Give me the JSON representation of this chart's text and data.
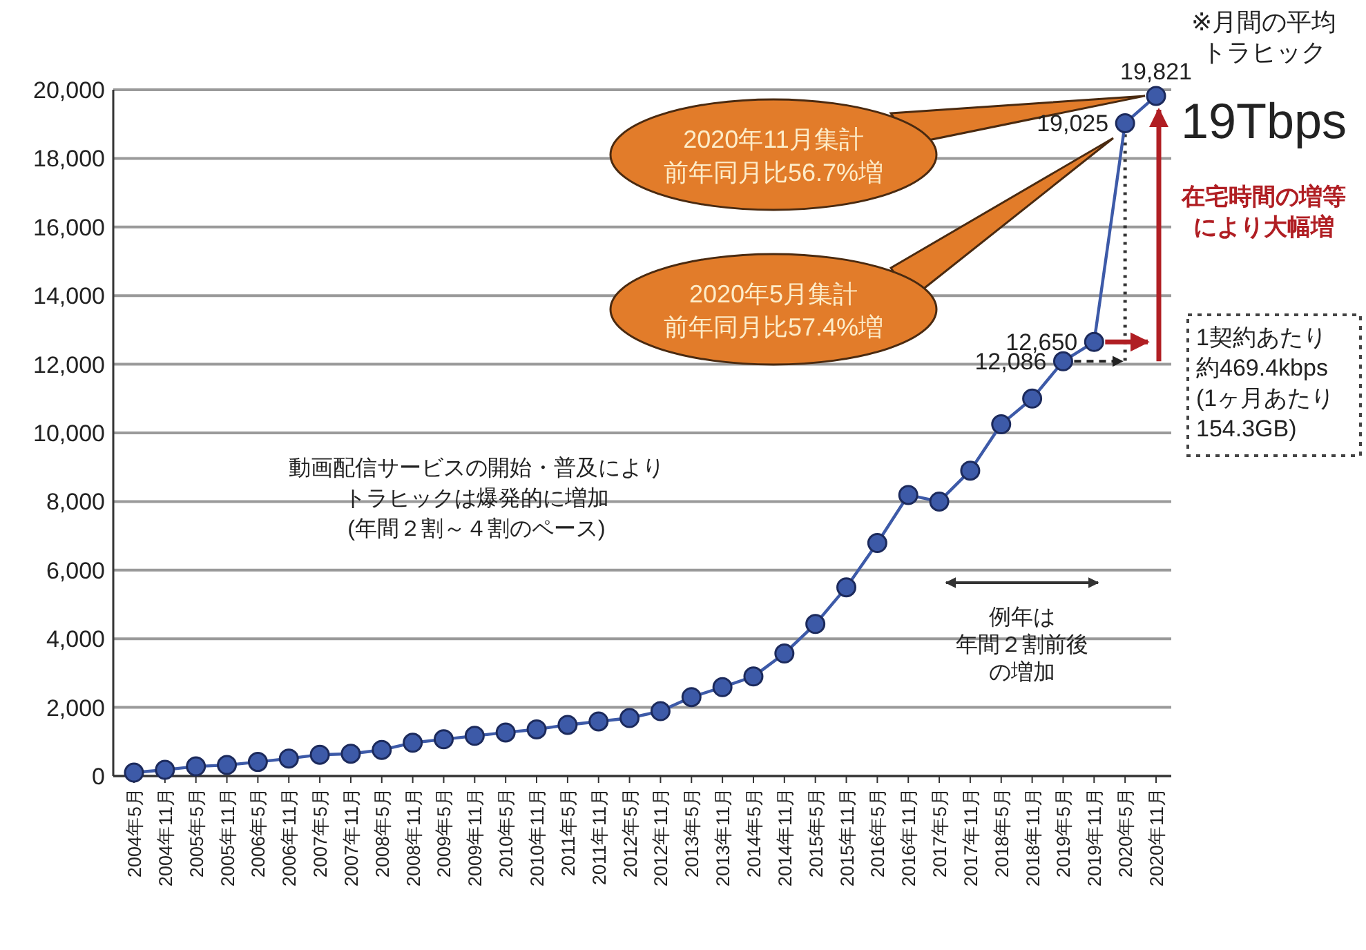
{
  "chart_data": {
    "type": "line",
    "categories": [
      "2004年5月",
      "2004年11月",
      "2005年5月",
      "2005年11月",
      "2006年5月",
      "2006年11月",
      "2007年5月",
      "2007年11月",
      "2008年5月",
      "2008年11月",
      "2009年5月",
      "2009年11月",
      "2010年5月",
      "2010年11月",
      "2011年5月",
      "2011年11月",
      "2012年5月",
      "2012年11月",
      "2013年5月",
      "2013年11月",
      "2014年5月",
      "2014年11月",
      "2015年5月",
      "2015年11月",
      "2016年5月",
      "2016年11月",
      "2017年5月",
      "2017年11月",
      "2018年5月",
      "2018年11月",
      "2019年5月",
      "2019年11月",
      "2020年5月",
      "2020年11月"
    ],
    "series": [
      {
        "color": "#3d5aa8",
        "values": [
          100,
          180,
          280,
          320,
          410,
          510,
          620,
          650,
          760,
          970,
          1070,
          1170,
          1270,
          1360,
          1490,
          1590,
          1690,
          1890,
          2300,
          2590,
          2900,
          3570,
          4430,
          5500,
          6790,
          8190,
          8000,
          8900,
          10250,
          11000,
          12086,
          12650,
          19025,
          19821
        ],
        "value_labels": [
          null,
          null,
          null,
          null,
          null,
          null,
          null,
          null,
          null,
          null,
          null,
          null,
          null,
          null,
          null,
          null,
          null,
          null,
          null,
          null,
          null,
          null,
          null,
          null,
          null,
          null,
          null,
          null,
          null,
          null,
          "12,086",
          "12,650",
          "19,025",
          "19,821"
        ]
      }
    ],
    "ylim": [
      0,
      20000
    ],
    "yticks": [
      0,
      {
        "value": 2000,
        "label": "2,000"
      },
      {
        "value": 4000,
        "label": "4,000"
      },
      {
        "value": 6000,
        "label": "6,000"
      },
      {
        "value": 8000,
        "label": "8,000"
      },
      {
        "value": 10000,
        "label": "10,000"
      },
      {
        "value": 12000,
        "label": "12,000"
      },
      {
        "value": 14000,
        "label": "14,000"
      },
      {
        "value": 16000,
        "label": "16,000"
      },
      {
        "value": 18000,
        "label": "18,000"
      },
      {
        "value": 20000,
        "label": "20,000"
      }
    ],
    "grid": "y",
    "marker": "circle",
    "annotations": [
      "※月間の平均トラヒック",
      "19Tbps",
      "在宅時間の増等により大幅増",
      "1契約あたり約469.4kbps(1ヶ月あたり154.3GB)",
      "動画配信サービスの開始・普及によりトラヒックは爆発的に増加(年間２割～４割のペース)",
      "例年は年間２割前後の増加",
      {
        "text": "2020年11月集計前年同月比56.7%増",
        "x": "2020年11月",
        "y": 19821
      },
      "2020年5月集計前年同月比57.4%増"
    ]
  }
}
